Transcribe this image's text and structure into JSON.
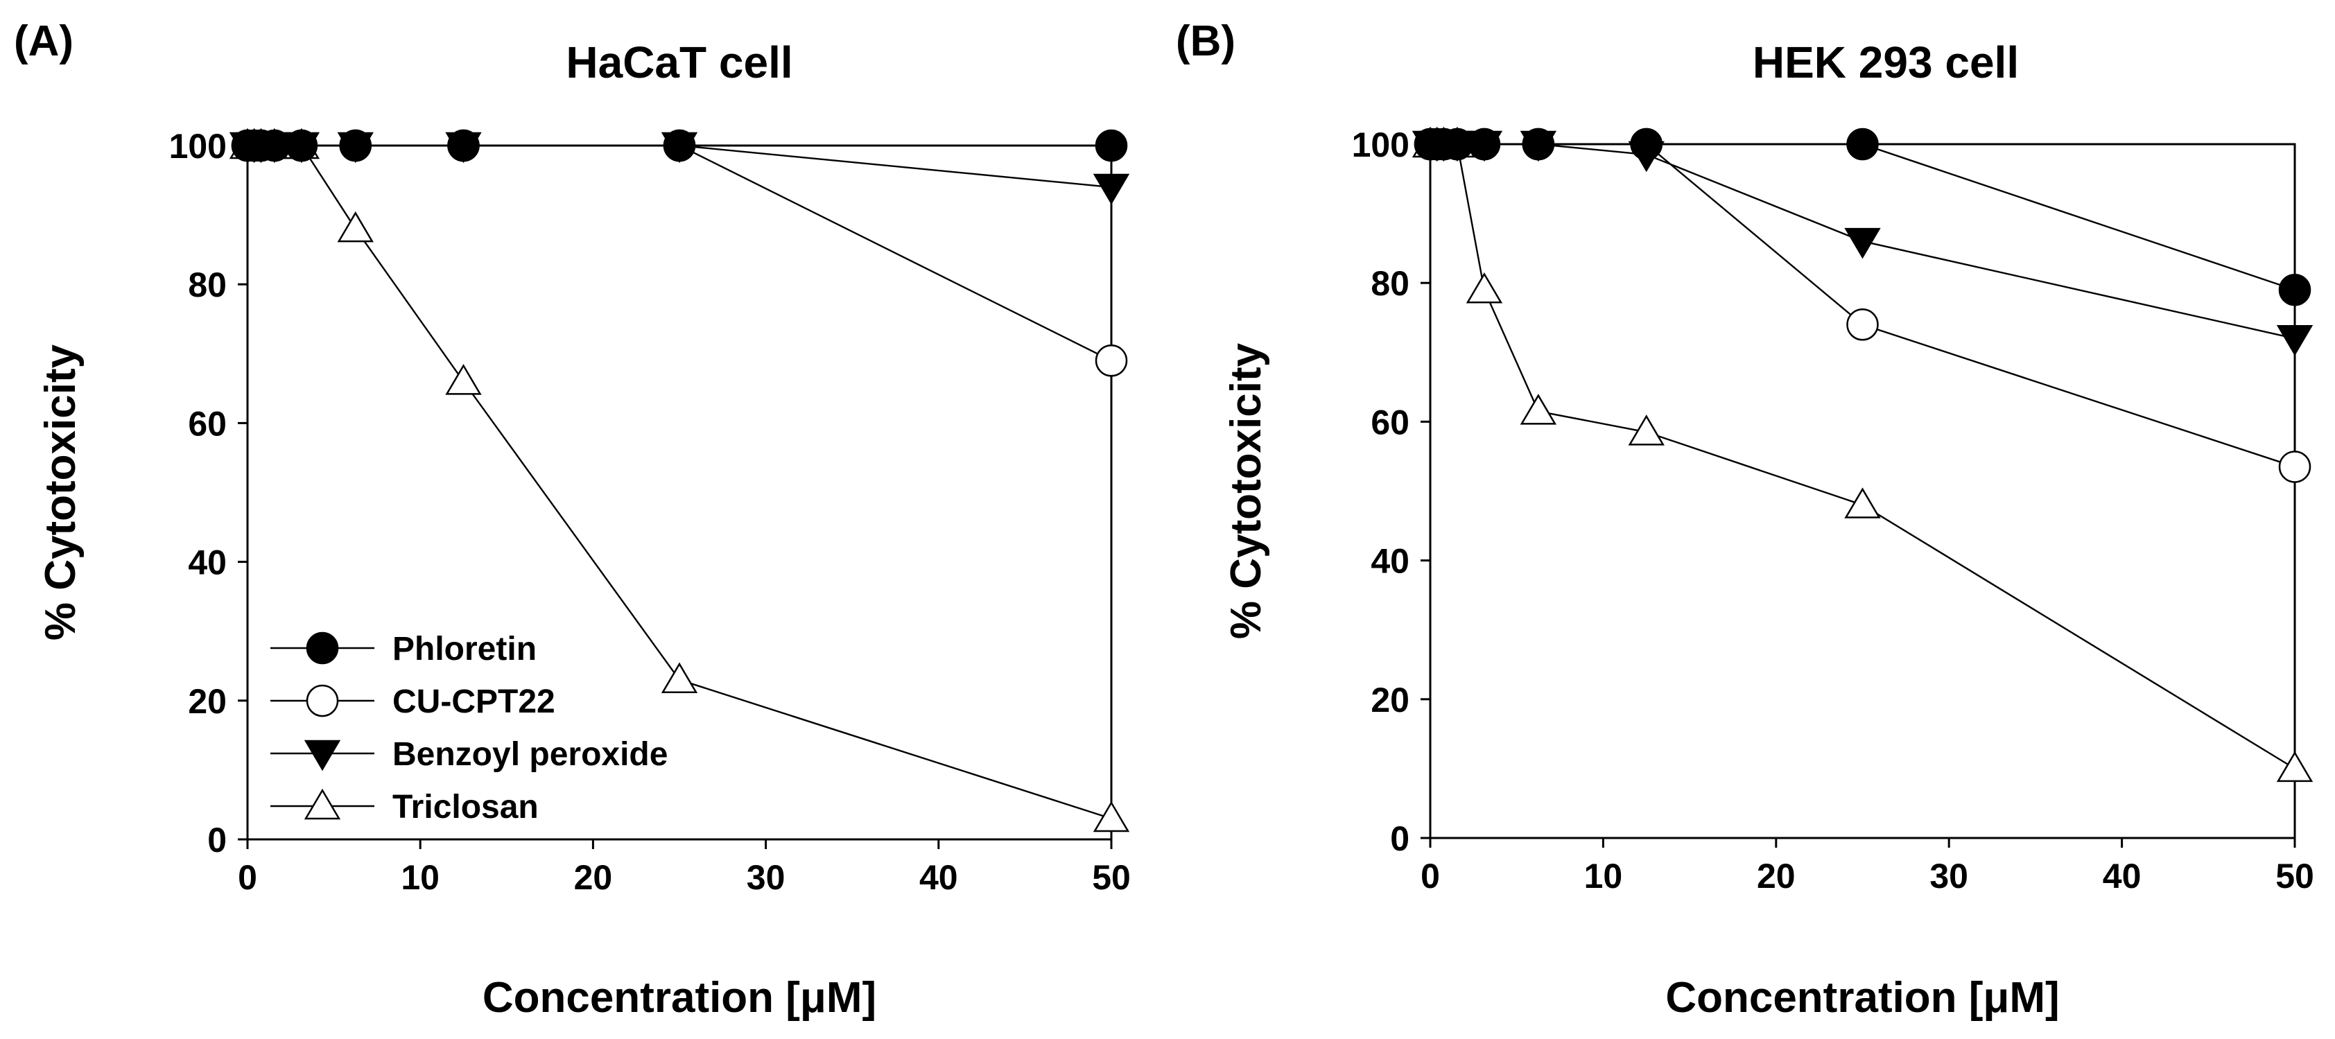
{
  "chart_data": [
    {
      "type": "line",
      "panel_label": "(A)",
      "title": "HaCaT cell",
      "xlabel": "Concentration [μM]",
      "ylabel": "% Cytotoxicity",
      "xlim": [
        0,
        50
      ],
      "ylim": [
        0,
        100
      ],
      "xticks": [
        0,
        10,
        20,
        30,
        40,
        50
      ],
      "yticks": [
        0,
        20,
        40,
        60,
        80,
        100
      ],
      "legend": {
        "location": "bottom-left",
        "entries": [
          "Phloretin",
          "CU-CPT22",
          "Benzoyl peroxide",
          "Triclosan"
        ]
      },
      "series": [
        {
          "name": "Phloretin",
          "marker": "filled-circle",
          "x": [
            0,
            0.39,
            0.78,
            1.56,
            3.125,
            6.25,
            12.5,
            25,
            50
          ],
          "y": [
            100,
            100,
            100,
            100,
            100,
            100,
            100,
            100,
            100
          ]
        },
        {
          "name": "CU-CPT22",
          "marker": "open-circle",
          "x": [
            0,
            0.39,
            0.78,
            1.56,
            3.125,
            6.25,
            12.5,
            25,
            50
          ],
          "y": [
            100,
            100,
            100,
            100,
            100,
            100,
            100,
            100,
            69
          ]
        },
        {
          "name": "Benzoyl peroxide",
          "marker": "filled-triangle-down",
          "x": [
            0,
            0.39,
            0.78,
            1.56,
            3.125,
            6.25,
            12.5,
            25,
            50
          ],
          "y": [
            100,
            100,
            100,
            100,
            100,
            100,
            100,
            100,
            94
          ]
        },
        {
          "name": "Triclosan",
          "marker": "open-triangle-up",
          "x": [
            0,
            0.39,
            0.78,
            1.56,
            3.125,
            6.25,
            12.5,
            25,
            50
          ],
          "y": [
            100,
            100,
            100,
            100,
            100,
            88,
            66,
            23,
            3
          ]
        }
      ]
    },
    {
      "type": "line",
      "panel_label": "(B)",
      "title": "HEK 293 cell",
      "xlabel": "Concentration [μM]",
      "ylabel": "% Cytotoxicity",
      "xlim": [
        0,
        50
      ],
      "ylim": [
        0,
        100
      ],
      "xticks": [
        0,
        10,
        20,
        30,
        40,
        50
      ],
      "yticks": [
        0,
        20,
        40,
        60,
        80,
        100
      ],
      "legend": null,
      "series": [
        {
          "name": "Phloretin",
          "marker": "filled-circle",
          "x": [
            0,
            0.39,
            0.78,
            1.56,
            3.125,
            6.25,
            12.5,
            25,
            50
          ],
          "y": [
            100,
            100,
            100,
            100,
            100,
            100,
            100,
            100,
            79
          ]
        },
        {
          "name": "CU-CPT22",
          "marker": "open-circle",
          "x": [
            0,
            0.39,
            0.78,
            1.56,
            3.125,
            6.25,
            12.5,
            25,
            50
          ],
          "y": [
            100,
            100,
            100,
            100,
            100,
            100,
            100,
            74,
            53.5
          ]
        },
        {
          "name": "Benzoyl peroxide",
          "marker": "filled-triangle-down",
          "x": [
            0,
            0.39,
            0.78,
            1.56,
            3.125,
            6.25,
            12.5,
            25,
            50
          ],
          "y": [
            100,
            100,
            100,
            100,
            100,
            100,
            98.5,
            86,
            72
          ]
        },
        {
          "name": "Triclosan",
          "marker": "open-triangle-up",
          "x": [
            0,
            0.39,
            0.78,
            1.56,
            3.125,
            6.25,
            12.5,
            25,
            50
          ],
          "y": [
            100,
            100,
            100,
            100,
            79,
            61.5,
            58.5,
            48,
            10
          ]
        }
      ]
    }
  ]
}
